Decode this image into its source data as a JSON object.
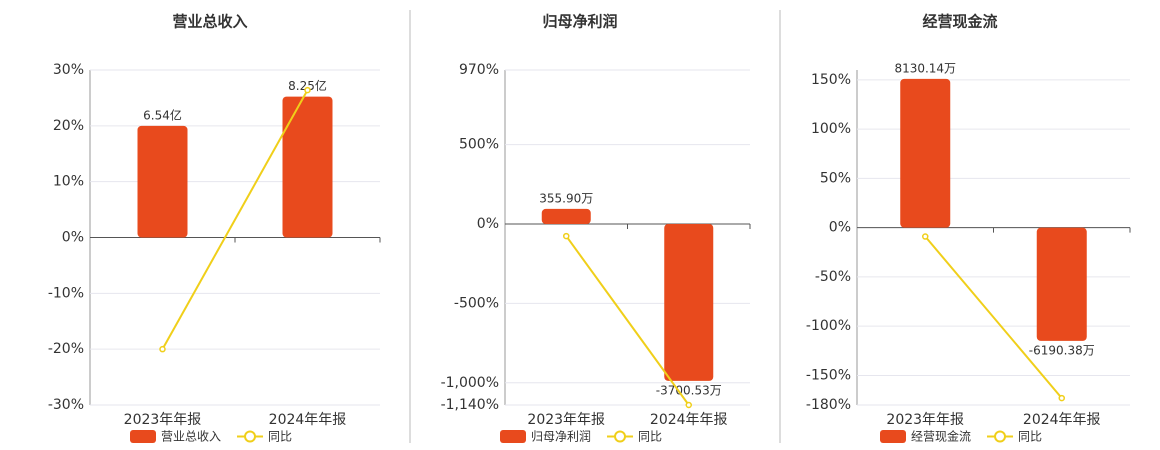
{
  "chart_data": [
    {
      "type": "combo",
      "title": "营业总收入",
      "categories": [
        "2023年年报",
        "2024年年报"
      ],
      "series": [
        {
          "name": "营业总收入",
          "color": "#e84a1d",
          "axis": "y2",
          "values": [
            6.54,
            8.25
          ],
          "value_labels": [
            "6.54亿",
            "8.25亿"
          ]
        },
        {
          "name": "同比",
          "color": "#f0cf1a",
          "values": [
            -20,
            26.4
          ]
        }
      ],
      "ylim": [
        -30,
        30
      ],
      "y2lim": [
        -9.81,
        9.81
      ],
      "yticks": [
        {
          "value": 30,
          "label": "30%"
        },
        {
          "value": 20,
          "label": "20%"
        },
        {
          "value": 10,
          "label": "10%"
        },
        {
          "value": 0,
          "label": "0%"
        },
        {
          "value": -10,
          "label": "-10%"
        },
        {
          "value": -20,
          "label": "-20%"
        },
        {
          "value": -30,
          "label": "-30%"
        }
      ],
      "grid": true
    },
    {
      "type": "combo",
      "title": "归母净利润",
      "categories": [
        "2023年年报",
        "2024年年报"
      ],
      "series": [
        {
          "name": "归母净利润",
          "color": "#e84a1d",
          "axis": "y2",
          "values": [
            355.9,
            -3700.53
          ],
          "value_labels": [
            "355.90万",
            "-3700.53万"
          ]
        },
        {
          "name": "同比",
          "color": "#f0cf1a",
          "values": [
            -76,
            -1140
          ]
        }
      ],
      "ylim": [
        -1140,
        970
      ],
      "y2lim": [
        -4270,
        3633
      ],
      "yticks": [
        {
          "value": 970,
          "label": "970%"
        },
        {
          "value": 500,
          "label": "500%"
        },
        {
          "value": 0,
          "label": "0%"
        },
        {
          "value": -500,
          "label": "-500%"
        },
        {
          "value": -1000,
          "label": "-1,000%"
        },
        {
          "value": -1140,
          "label": "-1,140%"
        }
      ],
      "grid": true
    },
    {
      "type": "combo",
      "title": "经营现金流",
      "categories": [
        "2023年年报",
        "2024年年报"
      ],
      "series": [
        {
          "name": "经营现金流",
          "color": "#e84a1d",
          "axis": "y2",
          "values": [
            8130.14,
            -6190.38
          ],
          "value_labels": [
            "8130.14万",
            "-6190.38万"
          ]
        },
        {
          "name": "同比",
          "color": "#f0cf1a",
          "values": [
            -9,
            -173
          ]
        }
      ],
      "ylim": [
        -180,
        160
      ],
      "y2lim": [
        -9693,
        8616
      ],
      "yticks": [
        {
          "value": 150,
          "label": "150%"
        },
        {
          "value": 100,
          "label": "100%"
        },
        {
          "value": 50,
          "label": "50%"
        },
        {
          "value": 0,
          "label": "0%"
        },
        {
          "value": -50,
          "label": "-50%"
        },
        {
          "value": -100,
          "label": "-100%"
        },
        {
          "value": -150,
          "label": "-150%"
        },
        {
          "value": -180,
          "label": "-180%"
        }
      ],
      "grid": true
    }
  ]
}
